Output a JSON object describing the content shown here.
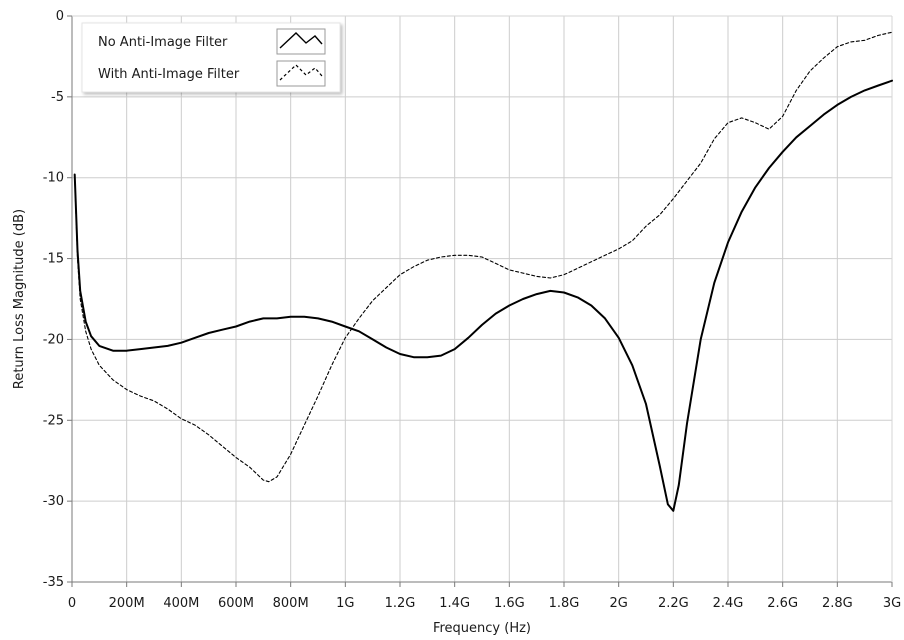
{
  "chart_data": {
    "type": "line",
    "xlabel": "Frequency (Hz)",
    "ylabel": "Return Loss Magnitude (dB)",
    "xlim": [
      0,
      3000000000
    ],
    "ylim": [
      -35,
      0
    ],
    "grid": true,
    "legend_position": "top-left",
    "x_ticks": [
      {
        "value": 0,
        "label": "0"
      },
      {
        "value": 200000000,
        "label": "200M"
      },
      {
        "value": 400000000,
        "label": "400M"
      },
      {
        "value": 600000000,
        "label": "600M"
      },
      {
        "value": 800000000,
        "label": "800M"
      },
      {
        "value": 1000000000,
        "label": "1G"
      },
      {
        "value": 1200000000,
        "label": "1.2G"
      },
      {
        "value": 1400000000,
        "label": "1.4G"
      },
      {
        "value": 1600000000,
        "label": "1.6G"
      },
      {
        "value": 1800000000,
        "label": "1.8G"
      },
      {
        "value": 2000000000,
        "label": "2G"
      },
      {
        "value": 2200000000,
        "label": "2.2G"
      },
      {
        "value": 2400000000,
        "label": "2.4G"
      },
      {
        "value": 2600000000,
        "label": "2.6G"
      },
      {
        "value": 2800000000,
        "label": "2.8G"
      },
      {
        "value": 3000000000,
        "label": "3G"
      }
    ],
    "y_ticks": [
      {
        "value": 0,
        "label": "0"
      },
      {
        "value": -5,
        "label": "-5"
      },
      {
        "value": -10,
        "label": "-10"
      },
      {
        "value": -15,
        "label": "-15"
      },
      {
        "value": -20,
        "label": "-20"
      },
      {
        "value": -25,
        "label": "-25"
      },
      {
        "value": -30,
        "label": "-30"
      },
      {
        "value": -35,
        "label": "-35"
      }
    ],
    "series": [
      {
        "name": "No Anti-Image Filter",
        "style": "solid",
        "color": "#000000",
        "x": [
          10000000,
          20000000,
          30000000,
          50000000,
          70000000,
          100000000,
          150000000,
          200000000,
          250000000,
          300000000,
          350000000,
          400000000,
          450000000,
          500000000,
          550000000,
          600000000,
          650000000,
          700000000,
          750000000,
          800000000,
          850000000,
          900000000,
          950000000,
          1000000000,
          1050000000,
          1100000000,
          1150000000,
          1200000000,
          1250000000,
          1300000000,
          1350000000,
          1400000000,
          1450000000,
          1500000000,
          1550000000,
          1600000000,
          1650000000,
          1700000000,
          1750000000,
          1800000000,
          1850000000,
          1900000000,
          1950000000,
          2000000000,
          2050000000,
          2100000000,
          2150000000,
          2180000000,
          2200000000,
          2220000000,
          2250000000,
          2300000000,
          2350000000,
          2400000000,
          2450000000,
          2500000000,
          2550000000,
          2600000000,
          2650000000,
          2700000000,
          2750000000,
          2800000000,
          2850000000,
          2900000000,
          2950000000,
          3000000000
        ],
        "values": [
          -9.8,
          -14.5,
          -17.0,
          -18.9,
          -19.8,
          -20.4,
          -20.7,
          -20.7,
          -20.6,
          -20.5,
          -20.4,
          -20.2,
          -19.9,
          -19.6,
          -19.4,
          -19.2,
          -18.9,
          -18.7,
          -18.7,
          -18.6,
          -18.6,
          -18.7,
          -18.9,
          -19.2,
          -19.5,
          -20.0,
          -20.5,
          -20.9,
          -21.1,
          -21.1,
          -21.0,
          -20.6,
          -19.9,
          -19.1,
          -18.4,
          -17.9,
          -17.5,
          -17.2,
          -17.0,
          -17.1,
          -17.4,
          -17.9,
          -18.7,
          -19.9,
          -21.6,
          -24.0,
          -27.8,
          -30.2,
          -30.6,
          -29.0,
          -25.2,
          -20.0,
          -16.5,
          -14.0,
          -12.1,
          -10.6,
          -9.4,
          -8.4,
          -7.5,
          -6.8,
          -6.1,
          -5.5,
          -5.0,
          -4.6,
          -4.3,
          -4.0
        ]
      },
      {
        "name": "With Anti-Image Filter",
        "style": "dashed",
        "color": "#000000",
        "x": [
          10000000,
          20000000,
          30000000,
          50000000,
          70000000,
          100000000,
          150000000,
          200000000,
          250000000,
          300000000,
          350000000,
          400000000,
          450000000,
          500000000,
          550000000,
          600000000,
          650000000,
          700000000,
          720000000,
          750000000,
          800000000,
          850000000,
          900000000,
          950000000,
          1000000000,
          1050000000,
          1100000000,
          1150000000,
          1200000000,
          1250000000,
          1300000000,
          1350000000,
          1400000000,
          1450000000,
          1500000000,
          1550000000,
          1600000000,
          1650000000,
          1700000000,
          1750000000,
          1800000000,
          1850000000,
          1900000000,
          1950000000,
          2000000000,
          2050000000,
          2100000000,
          2150000000,
          2200000000,
          2250000000,
          2300000000,
          2350000000,
          2400000000,
          2450000000,
          2500000000,
          2550000000,
          2600000000,
          2650000000,
          2700000000,
          2750000000,
          2800000000,
          2850000000,
          2900000000,
          2950000000,
          3000000000
        ],
        "values": [
          -10.0,
          -15.0,
          -17.5,
          -19.5,
          -20.6,
          -21.6,
          -22.5,
          -23.1,
          -23.5,
          -23.8,
          -24.3,
          -24.9,
          -25.3,
          -25.9,
          -26.6,
          -27.3,
          -27.9,
          -28.7,
          -28.8,
          -28.5,
          -27.1,
          -25.3,
          -23.5,
          -21.6,
          -19.9,
          -18.7,
          -17.6,
          -16.8,
          -16.0,
          -15.5,
          -15.1,
          -14.9,
          -14.8,
          -14.8,
          -14.9,
          -15.3,
          -15.7,
          -15.9,
          -16.1,
          -16.2,
          -16.0,
          -15.6,
          -15.2,
          -14.8,
          -14.4,
          -13.9,
          -13.0,
          -12.3,
          -11.3,
          -10.2,
          -9.1,
          -7.6,
          -6.6,
          -6.3,
          -6.6,
          -7.0,
          -6.2,
          -4.6,
          -3.4,
          -2.6,
          -1.9,
          -1.6,
          -1.5,
          -1.2,
          -1.0
        ]
      }
    ]
  }
}
